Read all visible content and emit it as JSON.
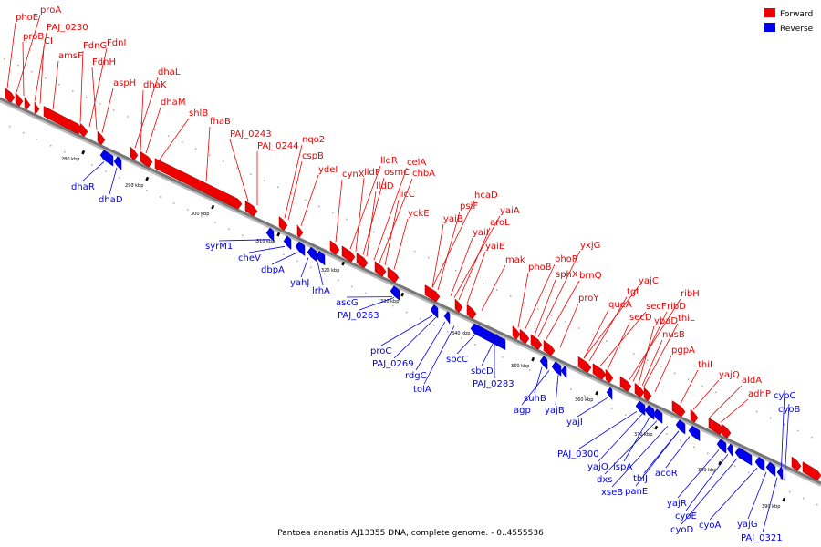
{
  "title": "Pantoea ananatis AJ13355 DNA, complete genome. - 0..4555536",
  "legend": [
    {
      "label": "Forward",
      "color": "#ee0000"
    },
    {
      "label": "Reverse",
      "color": "#0000ee"
    }
  ],
  "colors": {
    "forward": "#ee0000",
    "reverse": "#0000ee",
    "backbone": "#777777"
  },
  "ticks": [
    "280 kbp",
    "290 kbp",
    "300 kbp",
    "310 kbp",
    "320 kbp",
    "330 kbp",
    "340 kbp",
    "350 kbp",
    "360 kbp",
    "370 kbp",
    "380 kbp",
    "390 kbp"
  ],
  "forward_labels": [
    "phoE",
    "proA",
    "proB",
    "PAJ_0230",
    "CI",
    "amsF",
    "FdnG",
    "FdnI",
    "FdnH",
    "aspH",
    "dhaL",
    "dhaK",
    "dhaM",
    "shlB",
    "fhaB",
    "PAJ_0243",
    "PAJ_0244",
    "nqo2",
    "cspB",
    "ydeI",
    "cynX",
    "lldR",
    "lldP",
    "osmC",
    "celA",
    "chbA",
    "lldD",
    "licC",
    "yckE",
    "hcaD",
    "psiF",
    "yaiB",
    "yaiA",
    "aroL",
    "yaiI",
    "yaiE",
    "mak",
    "phoR",
    "yxjG",
    "phoB",
    "sphX",
    "brnQ",
    "proY",
    "yajC",
    "tgt",
    "queA",
    "secF",
    "ribH",
    "ribD",
    "secD",
    "ybaD",
    "thiL",
    "nusB",
    "pgpA",
    "thiI",
    "yajQ",
    "aldA",
    "adhP"
  ],
  "reverse_labels": [
    "dhaR",
    "dhaD",
    "syrM1",
    "cheV",
    "dbpA",
    "yahJ",
    "lrhA",
    "ascG",
    "PAJ_0263",
    "proC",
    "PAJ_0269",
    "rdgC",
    "sbcC",
    "tolA",
    "sbcD",
    "PAJ_0283",
    "suhB",
    "agp",
    "yajB",
    "yajI",
    "cyoC",
    "cyoB",
    "PAJ_0300",
    "yajO",
    "ispA",
    "dxs",
    "thiJ",
    "xseB",
    "acoR",
    "panE",
    "yajR",
    "cyoE",
    "cyoD",
    "cyoA",
    "yajG",
    "PAJ_0321"
  ]
}
